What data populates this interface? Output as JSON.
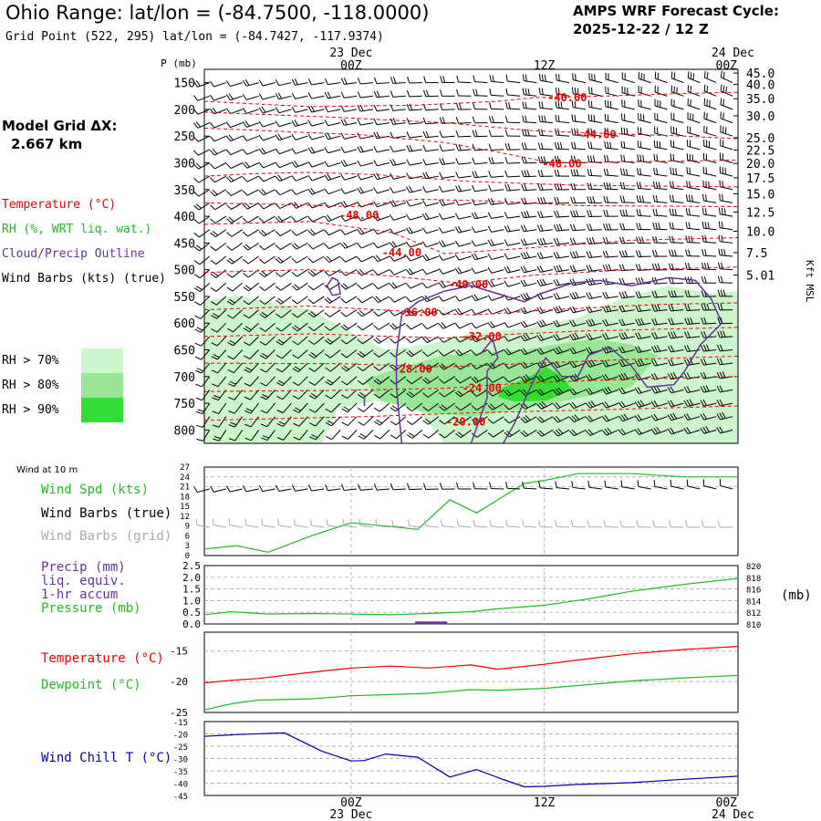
{
  "header": {
    "title": "Ohio Range:  lat/lon = (-84.7500, -118.0000)",
    "subtitle": "Grid Point (522, 295) lat/lon = (-84.7427, -117.9374)",
    "cycle_line1": "AMPS WRF Forecast Cycle:",
    "cycle_line2": "2025-12-22 / 12  Z"
  },
  "model_grid": {
    "line1": "Model Grid ΔX:",
    "line2": "2.667 km"
  },
  "legend": {
    "temperature": "Temperature (°C)",
    "rh": "RH (%, WRT liq. wat.)",
    "cloud": "Cloud/Precip Outline",
    "wind": "Wind Barbs (kts) (true)",
    "rh70": "RH > 70%",
    "rh80": "RH > 80%",
    "rh90": "RH > 90%",
    "rh70_color": "#ccf5cc",
    "rh80_color": "#99e699",
    "rh90_color": "#33dd33"
  },
  "colors": {
    "temperature": "#ee0000",
    "rh": "#22bb22",
    "cloud": "#663399",
    "wind": "#000000",
    "grid_barbs": "#aaaaaa",
    "windchill": "#0000aa"
  },
  "time_axis": {
    "top_labels": [
      {
        "date": "23 Dec",
        "time": "00Z",
        "f": 0.275
      },
      {
        "date": "",
        "time": "12Z",
        "f": 0.637
      },
      {
        "date": "24 Dec",
        "time": "00Z",
        "f": 1.0
      }
    ],
    "bottom_labels": [
      {
        "time": "00Z",
        "date": "23 Dec",
        "f": 0.275
      },
      {
        "time": "12Z",
        "date": "",
        "f": 0.637
      },
      {
        "time": "00Z",
        "date": "24 Dec",
        "f": 1.0
      }
    ]
  },
  "chart_data": [
    {
      "type": "heatmap",
      "name": "cross-section",
      "ylabel": "P (mb)",
      "ylabel_right": "Kft MSL",
      "pressure_ticks": [
        150,
        200,
        250,
        300,
        350,
        400,
        450,
        500,
        550,
        600,
        650,
        700,
        750,
        800
      ],
      "height_ticks": [
        {
          "label": "45.0",
          "p": 132
        },
        {
          "label": "40.0",
          "p": 153
        },
        {
          "label": "35.0",
          "p": 180
        },
        {
          "label": "30.0",
          "p": 212
        },
        {
          "label": "25.0",
          "p": 253
        },
        {
          "label": "22.5",
          "p": 276
        },
        {
          "label": "20.0",
          "p": 301
        },
        {
          "label": "17.5",
          "p": 328
        },
        {
          "label": "15.0",
          "p": 358
        },
        {
          "label": "12.5",
          "p": 392
        },
        {
          "label": "10.0",
          "p": 428
        },
        {
          "label": "7.5",
          "p": 468
        },
        {
          "label": "5.01",
          "p": 510
        }
      ],
      "temperature_labels": [
        {
          "text": "-40.00",
          "f": 0.68,
          "p": 178
        },
        {
          "text": "-44.00",
          "f": 0.735,
          "p": 247
        },
        {
          "text": "-48.00",
          "f": 0.67,
          "p": 302
        },
        {
          "text": "-48.00",
          "f": 0.29,
          "p": 398
        },
        {
          "text": "-44.00",
          "f": 0.37,
          "p": 468
        },
        {
          "text": "-40.00",
          "f": 0.495,
          "p": 528
        },
        {
          "text": "-36.00",
          "f": 0.4,
          "p": 580
        },
        {
          "text": "-32.00",
          "f": 0.52,
          "p": 625
        },
        {
          "text": "-28.00",
          "f": 0.39,
          "p": 686
        },
        {
          "text": "-24.00",
          "f": 0.52,
          "p": 722
        },
        {
          "text": "-20.00",
          "f": 0.49,
          "p": 785
        }
      ]
    },
    {
      "type": "line",
      "name": "wind-speed",
      "ylabel": "Wind Spd (kts)",
      "small_title": "Wind at 10 m",
      "label_barbs_true": "Wind Barbs (true)",
      "label_barbs_grid": "Wind Barbs (grid)",
      "ylim": [
        0,
        27
      ],
      "yticks": [
        0,
        3,
        6,
        9,
        12,
        15,
        18,
        21,
        24,
        27
      ],
      "x": [
        0,
        0.06,
        0.12,
        0.2,
        0.275,
        0.34,
        0.4,
        0.46,
        0.51,
        0.56,
        0.6,
        0.64,
        0.7,
        0.8,
        0.9,
        1.0
      ],
      "values": [
        2,
        3,
        1,
        6,
        10,
        9,
        8,
        17,
        13,
        18,
        22,
        23,
        25,
        25,
        24,
        24
      ]
    },
    {
      "type": "line",
      "name": "precip-pressure",
      "labels": [
        "Precip (mm)",
        "liq. equiv.",
        "1-hr accum",
        "Pressure (mb)"
      ],
      "right_unit": "(mb)",
      "ylim_left": [
        0,
        2.5
      ],
      "yticks_left": [
        "0.0",
        "0.5",
        "1.0",
        "1.5",
        "2.0",
        "2.5"
      ],
      "ylim_right": [
        810,
        820
      ],
      "yticks_right": [
        "810",
        "812",
        "814",
        "816",
        "818",
        "820"
      ],
      "pressure_x": [
        0,
        0.05,
        0.12,
        0.2,
        0.275,
        0.35,
        0.42,
        0.5,
        0.55,
        0.637,
        0.72,
        0.8,
        0.9,
        1.0
      ],
      "pressure": [
        811.6,
        812.1,
        811.7,
        811.8,
        811.7,
        811.6,
        811.8,
        812.1,
        812.6,
        813.2,
        814.3,
        815.6,
        816.8,
        817.8
      ],
      "precip_segment": {
        "start": 0.395,
        "end": 0.455,
        "value": 0.05
      }
    },
    {
      "type": "line",
      "name": "temperature-dewpoint",
      "labels": [
        "Temperature (°C)",
        "Dewpoint (°C)"
      ],
      "ylim": [
        -25,
        -12
      ],
      "yticks": [
        -15,
        -20,
        -25
      ],
      "x": [
        0,
        0.05,
        0.1,
        0.2,
        0.275,
        0.35,
        0.42,
        0.5,
        0.55,
        0.637,
        0.72,
        0.8,
        0.9,
        1.0
      ],
      "temperature": [
        -20.2,
        -19.8,
        -19.5,
        -18.5,
        -17.8,
        -17.5,
        -17.8,
        -17.3,
        -18.0,
        -17.2,
        -16.3,
        -15.5,
        -14.8,
        -14.3
      ],
      "dewpoint": [
        -24.6,
        -23.6,
        -23.0,
        -22.8,
        -22.3,
        -22.1,
        -21.9,
        -21.3,
        -21.4,
        -21.1,
        -20.5,
        -19.9,
        -19.4,
        -19.0
      ]
    },
    {
      "type": "line",
      "name": "wind-chill",
      "labels": [
        "Wind Chill T (°C)"
      ],
      "ylim": [
        -45,
        -15
      ],
      "yticks": [
        -15,
        -20,
        -25,
        -30,
        -35,
        -40,
        -45
      ],
      "x": [
        0,
        0.06,
        0.15,
        0.22,
        0.275,
        0.3,
        0.34,
        0.4,
        0.46,
        0.51,
        0.56,
        0.6,
        0.637,
        0.7,
        0.8,
        0.9,
        1.0
      ],
      "values": [
        -21,
        -20.3,
        -19.6,
        -27,
        -31,
        -30.8,
        -28.2,
        -29.5,
        -37.5,
        -34.5,
        -38.5,
        -41.5,
        -41.3,
        -40.5,
        -39.8,
        -38.4,
        -37.2
      ]
    }
  ]
}
